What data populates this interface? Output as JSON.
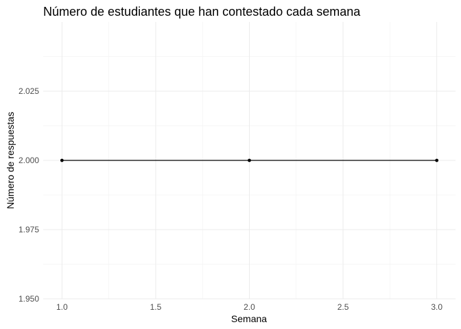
{
  "chart_data": {
    "type": "line",
    "title": "Número de estudiantes que han contestado cada semana",
    "xlabel": "Semana",
    "ylabel": "Número de respuestas",
    "x": [
      1,
      2,
      3
    ],
    "series": [
      {
        "values": [
          2,
          2,
          2
        ],
        "color": "#000000"
      }
    ],
    "xlim": [
      0.9,
      3.1
    ],
    "ylim": [
      1.95,
      2.05
    ],
    "x_ticks": [
      1.0,
      1.5,
      2.0,
      2.5,
      3.0
    ],
    "x_tick_labels": [
      "1.0",
      "1.5",
      "2.0",
      "2.5",
      "3.0"
    ],
    "y_ticks": [
      1.95,
      1.975,
      2.0,
      2.025
    ],
    "y_tick_labels": [
      "1.950",
      "1.975",
      "2.000",
      "2.025"
    ],
    "grid": true,
    "legend": "none"
  }
}
